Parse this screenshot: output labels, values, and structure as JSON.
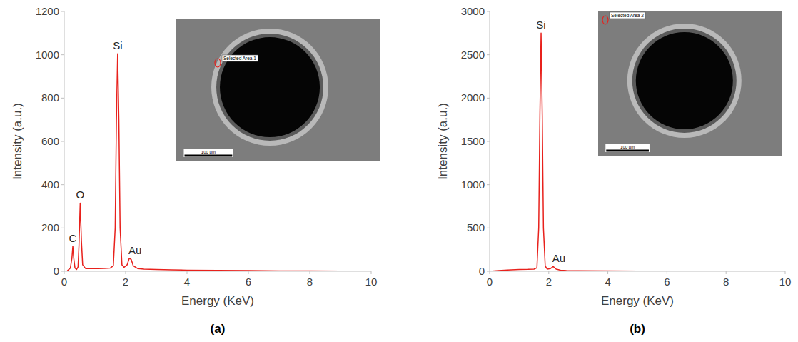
{
  "chart_data": [
    {
      "type": "line",
      "label": "(a)",
      "x_label": "Energy (KeV)",
      "y_label": "Intensity (a.u.)",
      "color": "#e8211c",
      "grid": false,
      "xlim": [
        0,
        10
      ],
      "xticks": [
        0,
        2,
        4,
        6,
        8,
        10
      ],
      "ylim": [
        0,
        1200
      ],
      "yticks": [
        0,
        200,
        400,
        600,
        800,
        1000,
        1200
      ],
      "x": [
        0,
        0.1,
        0.2,
        0.25,
        0.28,
        0.31,
        0.35,
        0.4,
        0.45,
        0.48,
        0.52,
        0.56,
        0.6,
        0.7,
        0.9,
        1.1,
        1.3,
        1.5,
        1.6,
        1.66,
        1.7,
        1.74,
        1.78,
        1.82,
        1.88,
        1.95,
        2.05,
        2.12,
        2.18,
        2.25,
        2.4,
        2.6,
        3,
        3.5,
        4,
        5,
        6,
        7,
        8,
        9,
        10
      ],
      "values": [
        0,
        2,
        15,
        60,
        115,
        60,
        15,
        8,
        20,
        120,
        315,
        140,
        30,
        12,
        12,
        12,
        13,
        15,
        25,
        200,
        700,
        1005,
        700,
        200,
        30,
        18,
        30,
        60,
        55,
        25,
        12,
        10,
        8,
        7,
        5,
        4,
        3,
        2,
        2,
        1,
        1
      ],
      "annotations": [
        {
          "text": "C",
          "x": 0.28
        },
        {
          "text": "O",
          "x": 0.52
        },
        {
          "text": "Si",
          "x": 1.74
        },
        {
          "text": "Au",
          "x": 2.12
        }
      ],
      "inset": {
        "area_label": "Selected Area 1",
        "scale_bar": "100 μm"
      }
    },
    {
      "type": "line",
      "label": "(b)",
      "x_label": "Energy (KeV)",
      "y_label": "Intensity (a.u.)",
      "color": "#e8211c",
      "grid": false,
      "xlim": [
        0,
        10
      ],
      "xticks": [
        0,
        2,
        4,
        6,
        8,
        10
      ],
      "ylim": [
        0,
        3000
      ],
      "yticks": [
        0,
        500,
        1000,
        1500,
        2000,
        2500,
        3000
      ],
      "x": [
        0,
        0.3,
        0.6,
        1,
        1.3,
        1.5,
        1.6,
        1.66,
        1.7,
        1.74,
        1.78,
        1.82,
        1.88,
        1.95,
        2.05,
        2.15,
        2.25,
        2.4,
        2.6,
        3,
        4,
        5,
        6,
        8,
        10
      ],
      "values": [
        0,
        8,
        15,
        20,
        22,
        25,
        40,
        500,
        1800,
        2750,
        1800,
        500,
        60,
        25,
        30,
        55,
        25,
        12,
        8,
        6,
        4,
        3,
        2,
        1,
        1
      ],
      "annotations": [
        {
          "text": "Si",
          "x": 1.74
        },
        {
          "text": "Au",
          "x": 2.15
        }
      ],
      "inset": {
        "area_label": "Selected Area 2",
        "scale_bar": "100 μm"
      }
    }
  ]
}
